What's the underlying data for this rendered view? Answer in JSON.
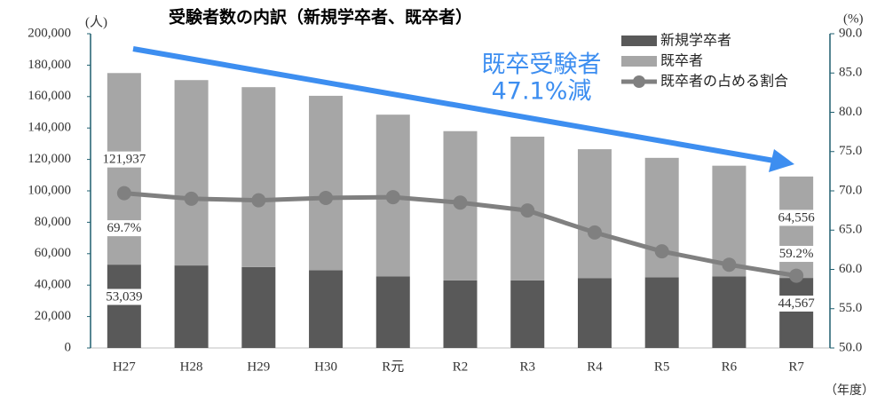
{
  "chart_data": {
    "type": "stacked_bar_line",
    "title": "受験者数の内訳（新規学卒者、既卒者）",
    "y_label": "(人)",
    "y2_label": "(%)",
    "x_label": "（年度）",
    "annotation": [
      "既卒受験者",
      "47.1%減"
    ],
    "categories": [
      "H27",
      "H28",
      "H29",
      "H30",
      "R元",
      "R2",
      "R3",
      "R4",
      "R5",
      "R6",
      "R7"
    ],
    "series": [
      {
        "name": "新規学卒者",
        "color": "#595959",
        "kind": "bar",
        "values": [
          53039,
          52500,
          51500,
          49500,
          45500,
          43000,
          43000,
          44500,
          45000,
          45500,
          44567
        ],
        "value_labels": [
          "53,039",
          null,
          null,
          null,
          null,
          null,
          null,
          null,
          null,
          null,
          "44,567"
        ]
      },
      {
        "name": "既卒者",
        "color": "#a6a6a6",
        "kind": "bar",
        "values": [
          121937,
          118000,
          114500,
          111000,
          103000,
          95000,
          91500,
          82000,
          76000,
          70500,
          64556
        ],
        "value_labels": [
          "121,937",
          null,
          null,
          null,
          null,
          null,
          null,
          null,
          null,
          null,
          "64,556"
        ]
      },
      {
        "name": "既卒者の占める割合",
        "color": "#808080",
        "kind": "line",
        "axis": "y2",
        "values": [
          69.7,
          69.0,
          68.8,
          69.1,
          69.2,
          68.5,
          67.5,
          64.7,
          62.3,
          60.6,
          59.2
        ],
        "value_labels": [
          "69.7%",
          null,
          null,
          null,
          null,
          null,
          null,
          null,
          null,
          null,
          "59.2%"
        ]
      }
    ],
    "ylim": [
      0,
      200000
    ],
    "yticks": [
      0,
      {
        "value": 20000,
        "label": "20,000"
      },
      {
        "value": 40000,
        "label": "40,000"
      },
      {
        "value": 60000,
        "label": "60,000"
      },
      {
        "value": 80000,
        "label": "80,000"
      },
      {
        "value": 100000,
        "label": "100,000"
      },
      {
        "value": 120000,
        "label": "120,000"
      },
      {
        "value": 140000,
        "label": "140,000"
      },
      {
        "value": 160000,
        "label": "160,000"
      },
      {
        "value": 180000,
        "label": "180,000"
      },
      {
        "value": 200000,
        "label": "200,000"
      }
    ],
    "y2lim": [
      50,
      90
    ],
    "y2ticks": [
      {
        "value": 50,
        "label": "50.0"
      },
      {
        "value": 55,
        "label": "55.0"
      },
      {
        "value": 60,
        "label": "60.0"
      },
      {
        "value": 65,
        "label": "65.0"
      },
      {
        "value": 70,
        "label": "70.0"
      },
      {
        "value": 75,
        "label": "75.0"
      },
      {
        "value": 80,
        "label": "80.0"
      },
      {
        "value": 85,
        "label": "85.0"
      },
      {
        "value": 90,
        "label": "90.0"
      }
    ],
    "legend": "top-right",
    "label_color": "#2e86de"
  }
}
